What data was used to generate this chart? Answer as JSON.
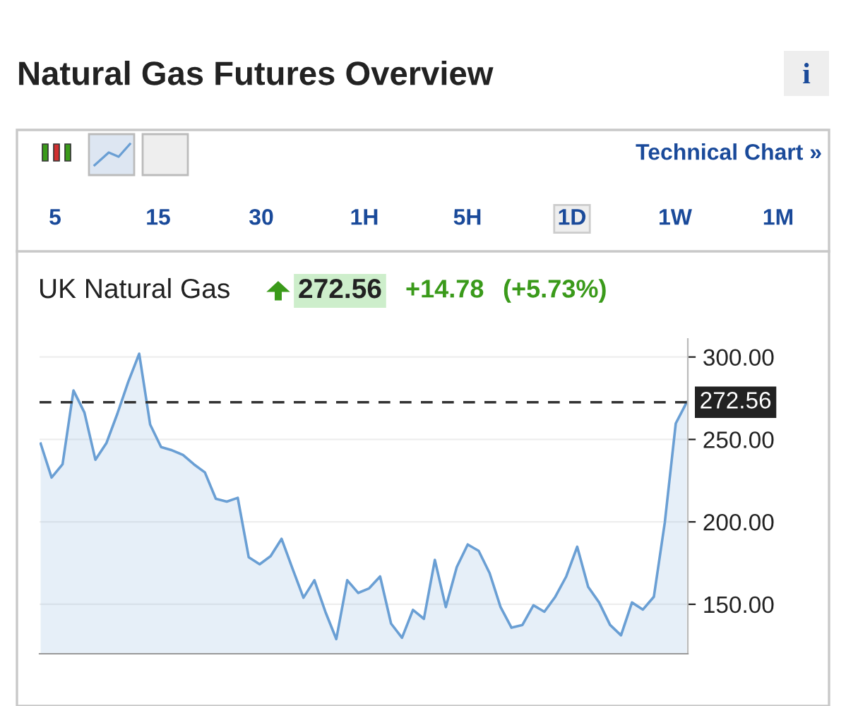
{
  "chart_data": {
    "type": "area",
    "title": "Natural Gas Futures Overview",
    "categories": [
      null,
      null,
      null,
      null,
      null,
      null,
      null,
      null,
      null,
      null,
      null,
      null,
      null,
      null,
      null,
      null,
      null,
      null,
      null,
      null,
      null,
      null,
      null,
      null,
      null,
      null,
      null,
      null,
      null,
      null,
      null,
      null,
      null,
      null,
      null,
      null,
      null,
      null,
      null,
      null,
      null,
      null,
      null,
      null,
      null,
      null,
      null,
      null,
      null,
      null,
      null,
      null,
      null,
      null,
      null,
      null,
      null,
      null,
      null,
      null
    ],
    "series": [
      {
        "color": "#6a9fd4",
        "values": [
          247.5,
          226.9,
          234.9,
          279.7,
          266.3,
          237.7,
          247.7,
          265.5,
          284.9,
          302,
          259.1,
          245.4,
          243.4,
          240.6,
          234.9,
          230,
          214,
          212.3,
          214.6,
          178.6,
          174.3,
          179.2,
          189.7,
          171.7,
          154,
          164.6,
          145.5,
          128.9,
          164.6,
          156.9,
          159.7,
          166.9,
          138.3,
          129.7,
          146.6,
          141.2,
          176.9,
          148.3,
          172.6,
          186.3,
          182.4,
          168.9,
          148.3,
          135.8,
          137.5,
          149.4,
          145.5,
          154.6,
          166.9,
          184.9,
          160.6,
          151.1,
          137.5,
          131.2,
          151.1,
          146.8,
          154.6,
          199.7,
          259.7,
          272.56
        ]
      }
    ],
    "ylim": [
      120,
      311
    ],
    "yticks": [
      {
        "value": 150,
        "label": "150.00"
      },
      {
        "value": 200,
        "label": "200.00"
      },
      {
        "value": 250,
        "label": "250.00"
      },
      {
        "value": 300,
        "label": "300.00"
      }
    ],
    "grid": "y",
    "tick_labels": "y",
    "ref_lines": [
      {
        "axis": "y",
        "value": 272.56,
        "label": "272.56",
        "color": "#333333",
        "line_style": "dashed"
      }
    ],
    "annotations": [
      "Technical Chart »",
      "5",
      "15",
      "30",
      "1H",
      "5H",
      "1D",
      "1W",
      "1M",
      "UK Natural Gas",
      "272.56",
      "+14.78",
      "(+5.73%)",
      "i"
    ]
  }
}
